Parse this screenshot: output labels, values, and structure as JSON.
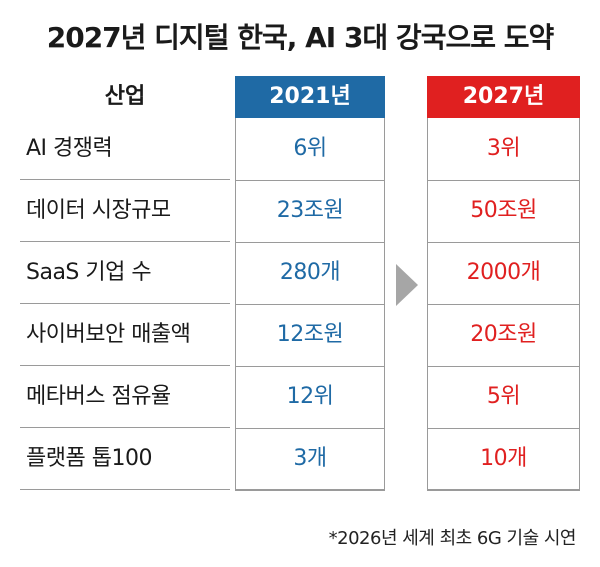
{
  "title": "2027년 디지털 한국, AI 3대 강국으로 도약",
  "colors": {
    "header_2021": "#1f6aa5",
    "header_2027": "#e02020",
    "value_2021": "#1f6aa5",
    "value_2027": "#e02020",
    "arrow": "#a6a6a6"
  },
  "header": {
    "industry": "산업",
    "year1": "2021년",
    "year2": "2027년"
  },
  "rows": [
    {
      "label": "AI 경쟁력",
      "y2021": "6위",
      "y2027": "3위"
    },
    {
      "label": "데이터 시장규모",
      "y2021": "23조원",
      "y2027": "50조원"
    },
    {
      "label": "SaaS 기업 수",
      "y2021": "280개",
      "y2027": "2000개"
    },
    {
      "label": "사이버보안 매출액",
      "y2021": "12조원",
      "y2027": "20조원"
    },
    {
      "label": "메타버스 점유율",
      "y2021": "12위",
      "y2027": "5위"
    },
    {
      "label": "플랫폼 톱100",
      "y2021": "3개",
      "y2027": "10개"
    }
  ],
  "arrow_icon": "chevron-right-icon",
  "footnote": "*2026년 세계 최초 6G 기술 시연"
}
